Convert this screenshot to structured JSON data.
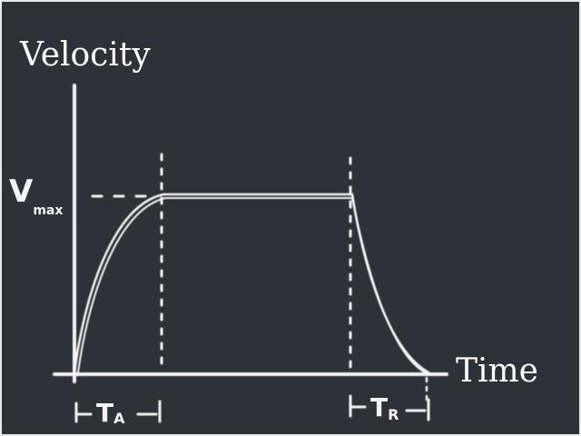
{
  "y_axis_label": "Velocity",
  "x_axis_label": "Time",
  "vmax_label": "V",
  "vmax_subscript": "max",
  "ta_label": "T",
  "ta_subscript": "A",
  "tr_label": "T",
  "tr_subscript": "R",
  "colors": {
    "background": "#2d3238",
    "chalk": "#f4f4f4"
  }
}
